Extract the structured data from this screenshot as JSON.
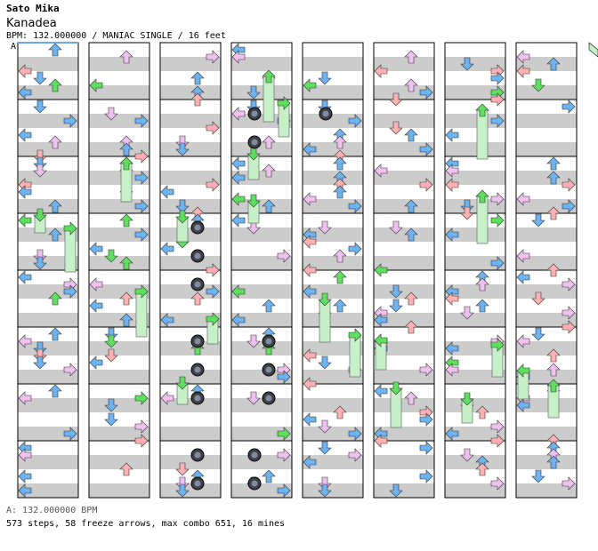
{
  "header": {
    "artist": "Sato Mika",
    "title": "Kanadea",
    "info": "BPM: 132.000000 / MANIAC SINGLE / 16 feet"
  },
  "marker": "A",
  "footer": {
    "bpm": "A: 132.000000 BPM",
    "stats": "573 steps, 58 freeze arrows, max combo 651, 16 mines"
  },
  "colors": {
    "stripe": "#cccccc",
    "red": "#ffb0b0",
    "blue": "#6fb2f0",
    "pink": "#f0c0f0",
    "green": "#5ee05e",
    "freeze": "#c8f0c8",
    "mine": "#404040",
    "bpm_line": "#6aa8f0"
  },
  "notes": {
    "steps": 573,
    "freezes": 58,
    "mines": 16
  }
}
